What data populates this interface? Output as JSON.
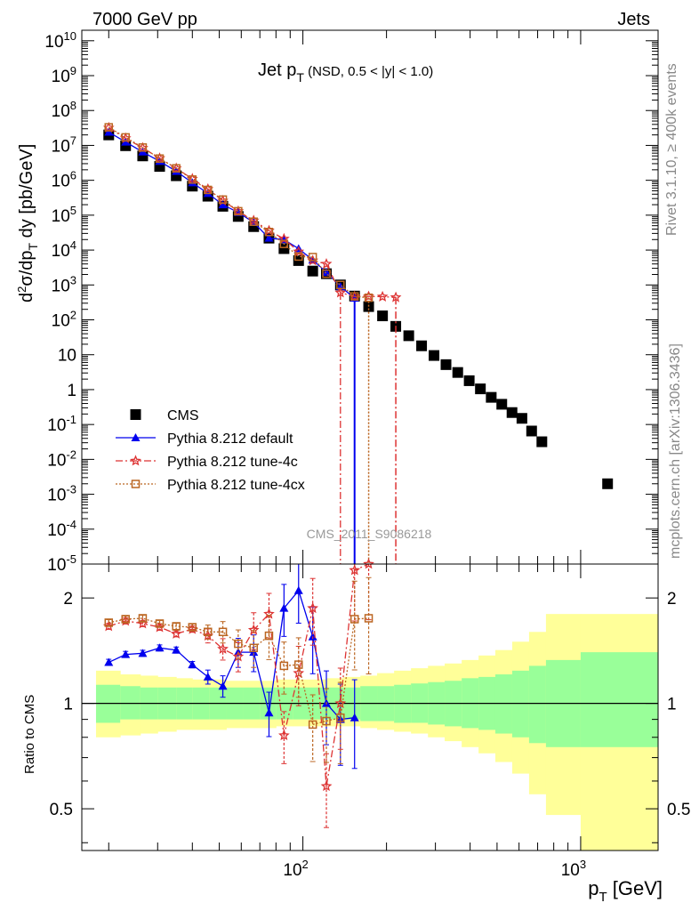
{
  "header": {
    "left": "7000 GeV pp",
    "right": "Jets",
    "rivet_info": "Rivet 3.1.10, ≥ 400k events",
    "site_info": "mcplots.cern.ch [arXiv:1306.3436]",
    "watermark": "CMS_2011_S9086218"
  },
  "chart_data": [
    {
      "type": "scatter",
      "title": "Jet p_T (NSD, 0.5 < |y| < 1.0)",
      "title_main": "Jet p",
      "title_sub": "T",
      "title_rest": " (NSD, 0.5 < |y| < 1.0)",
      "ylabel": "d²σ/dp_T dy [pb/GeV]",
      "xscale": "log",
      "yscale": "log",
      "xlim": [
        16,
        1900
      ],
      "ylim": [
        1e-05,
        20000000000
      ],
      "ytick_labels": [
        "10^10",
        "10^9",
        "10^8",
        "10^7",
        "10^6",
        "10^5",
        "10^4",
        "10^3",
        "10^2",
        "10",
        "1",
        "10^-1",
        "10^-2",
        "10^-3",
        "10^-4",
        "10^-5"
      ],
      "legend_position": "lower-left",
      "series": [
        {
          "name": "CMS",
          "color": "#000000",
          "marker": "square",
          "x": [
            20,
            23,
            26.5,
            30.5,
            35,
            40,
            45.5,
            51.5,
            58.5,
            66.5,
            75.5,
            85.5,
            96.5,
            108.5,
            121.5,
            136.5,
            153.5,
            172.5,
            193.5,
            216,
            240.5,
            267.5,
            296.5,
            327.5,
            361,
            397,
            435.5,
            476.5,
            520,
            566,
            614.5,
            666,
            725,
            1250
          ],
          "y": [
            20000000,
            9800000,
            5000000,
            2500000,
            1350000,
            680000,
            350000,
            180000,
            92000,
            47000,
            22000,
            11000,
            5000,
            2500,
            2100,
            1000,
            480,
            240,
            130,
            65,
            35,
            18,
            9.5,
            5.2,
            3.1,
            1.8,
            1.05,
            0.6,
            0.38,
            0.22,
            0.15,
            0.065,
            0.032,
            0.002
          ]
        },
        {
          "name": "Pythia 8.212 default",
          "color": "#0000ee",
          "marker": "triangle",
          "x": [
            20,
            23,
            26.5,
            30.5,
            35,
            40,
            45.5,
            51.5,
            58.5,
            66.5,
            75.5,
            85.5,
            96.5,
            108.5,
            121.5,
            136.5,
            153.5
          ],
          "y": [
            24000000,
            12500000,
            6500000,
            3500000,
            1800000,
            850000,
            420000,
            200000,
            120000,
            62000,
            22000,
            20000,
            11000,
            5200,
            2300,
            900,
            420
          ]
        },
        {
          "name": "Pythia 8.212 tune-4c",
          "color": "#dd3333",
          "marker": "star",
          "x": [
            20,
            23,
            26.5,
            30.5,
            35,
            40,
            45.5,
            51.5,
            58.5,
            66.5,
            75.5,
            85.5,
            96.5,
            108.5,
            121.5,
            136.5,
            153.5,
            172.5,
            193.5,
            216
          ],
          "y": [
            32000000,
            16000000,
            8500000,
            4300000,
            2200000,
            1100000,
            560000,
            260000,
            130000,
            70000,
            36000,
            21000,
            9000,
            5000,
            4000,
            600,
            470,
            470,
            460,
            440
          ]
        },
        {
          "name": "Pythia 8.212 tune-4cx",
          "color": "#bb6622",
          "marker": "open-square",
          "x": [
            20,
            23,
            26.5,
            30.5,
            35,
            40,
            45.5,
            51.5,
            58.5,
            66.5,
            75.5,
            85.5,
            96.5,
            108.5,
            121.5,
            136.5,
            153.5,
            172.5
          ],
          "y": [
            33000000,
            17000000,
            8700000,
            4200000,
            2200000,
            1050000,
            530000,
            280000,
            130000,
            65000,
            33000,
            15000,
            6500,
            6300,
            2100,
            1000,
            470,
            430
          ]
        }
      ]
    },
    {
      "type": "scatter",
      "ylabel": "Ratio to CMS",
      "xlabel": "p_T [GeV]",
      "xlabel_main": "p",
      "xlabel_sub": "T",
      "xlabel_rest": " [GeV]",
      "xscale": "log",
      "yscale": "log",
      "xlim": [
        16,
        1900
      ],
      "ylim": [
        0.38,
        2.5
      ],
      "xtick_labels": [
        "10^2",
        "10^3"
      ],
      "ytick_labels": [
        "2",
        "1",
        "0.5"
      ],
      "bands": {
        "stat_color": "#99ff99",
        "total_color": "#ffff99",
        "x_edges": [
          18,
          22,
          26,
          30,
          35,
          40,
          46,
          53,
          61,
          70,
          80,
          92,
          106,
          122,
          140,
          161,
          185,
          213,
          245,
          282,
          324,
          373,
          429,
          493,
          567,
          652,
          750,
          1000,
          1900
        ],
        "stat_lo": [
          0.88,
          0.9,
          0.9,
          0.9,
          0.9,
          0.9,
          0.9,
          0.9,
          0.9,
          0.9,
          0.9,
          0.9,
          0.9,
          0.9,
          0.9,
          0.89,
          0.89,
          0.88,
          0.88,
          0.87,
          0.86,
          0.85,
          0.84,
          0.82,
          0.8,
          0.77,
          0.75,
          0.75
        ],
        "stat_hi": [
          1.13,
          1.12,
          1.11,
          1.11,
          1.11,
          1.11,
          1.11,
          1.11,
          1.11,
          1.11,
          1.11,
          1.11,
          1.11,
          1.11,
          1.11,
          1.12,
          1.12,
          1.13,
          1.14,
          1.15,
          1.16,
          1.18,
          1.19,
          1.21,
          1.24,
          1.28,
          1.33,
          1.4
        ],
        "tot_lo": [
          0.8,
          0.81,
          0.82,
          0.83,
          0.84,
          0.84,
          0.84,
          0.85,
          0.85,
          0.85,
          0.86,
          0.86,
          0.86,
          0.86,
          0.86,
          0.85,
          0.84,
          0.83,
          0.82,
          0.8,
          0.78,
          0.75,
          0.72,
          0.68,
          0.63,
          0.55,
          0.48,
          0.35
        ],
        "tot_hi": [
          1.24,
          1.21,
          1.2,
          1.19,
          1.18,
          1.17,
          1.17,
          1.16,
          1.16,
          1.16,
          1.17,
          1.17,
          1.17,
          1.18,
          1.19,
          1.2,
          1.22,
          1.24,
          1.26,
          1.28,
          1.3,
          1.33,
          1.37,
          1.42,
          1.5,
          1.6,
          1.8,
          1.8
        ]
      },
      "series": [
        {
          "name": "Pythia 8.212 default",
          "color": "#0000ee",
          "x": [
            20,
            23,
            26.5,
            30.5,
            35,
            40,
            45.5,
            51.5,
            58.5,
            66.5,
            75.5,
            85.5,
            96.5,
            108.5,
            121.5,
            136.5,
            153.5
          ],
          "y": [
            1.31,
            1.38,
            1.39,
            1.44,
            1.42,
            1.29,
            1.19,
            1.12,
            1.4,
            1.4,
            0.94,
            1.87,
            2.1,
            1.55,
            1.0,
            0.9,
            0.91
          ]
        },
        {
          "name": "Pythia 8.212 tune-4c",
          "color": "#dd3333",
          "x": [
            20,
            23,
            26.5,
            30.5,
            35,
            40,
            45.5,
            51.5,
            58.5,
            66.5,
            75.5,
            85.5,
            96.5,
            108.5,
            121.5,
            136.5,
            153.5,
            172.5
          ],
          "y": [
            1.66,
            1.72,
            1.69,
            1.65,
            1.58,
            1.63,
            1.56,
            1.43,
            1.36,
            1.62,
            1.8,
            0.81,
            1.22,
            1.87,
            0.58,
            1.0,
            2.4,
            2.5
          ]
        },
        {
          "name": "Pythia 8.212 tune-4cx",
          "color": "#bb6622",
          "x": [
            20,
            23,
            26.5,
            30.5,
            35,
            40,
            45.5,
            51.5,
            58.5,
            66.5,
            75.5,
            85.5,
            96.5,
            108.5,
            121.5,
            136.5,
            153.5,
            172.5
          ],
          "y": [
            1.7,
            1.74,
            1.75,
            1.69,
            1.66,
            1.65,
            1.6,
            1.6,
            1.48,
            1.44,
            1.56,
            1.28,
            1.29,
            0.87,
            0.89,
            0.91,
            1.74,
            1.75
          ]
        }
      ]
    }
  ]
}
